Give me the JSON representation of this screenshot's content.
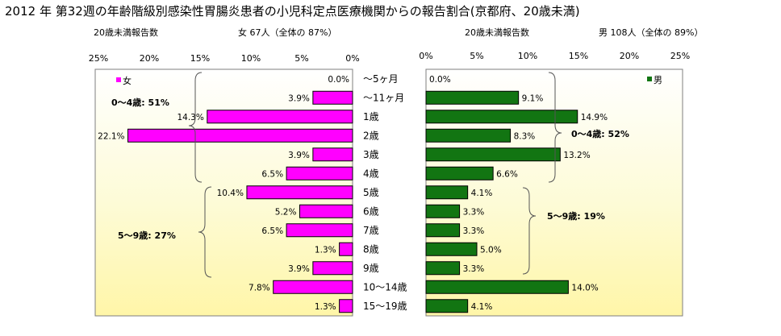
{
  "title": "2012 年 第32週の年齢階級別感染性胃腸炎患者の小児科定点医療機関からの報告割合(京都府、20歳未満)",
  "chart_data": {
    "type": "bar",
    "categories": [
      "～5ヶ月",
      "～11ヶ月",
      "1歳",
      "2歳",
      "3歳",
      "4歳",
      "5歳",
      "6歳",
      "7歳",
      "8歳",
      "9歳",
      "10～14歳",
      "15～19歳"
    ],
    "axis_ticks": [
      "0%",
      "5%",
      "10%",
      "15%",
      "20%",
      "25%"
    ],
    "xlim": [
      0,
      25
    ],
    "female": {
      "header_left": "20歳未満報告数",
      "header_right": "女 67人（全体の 87%）",
      "legend": "女",
      "color": "#ff00ff",
      "values": [
        0.0,
        3.9,
        14.3,
        22.1,
        3.9,
        6.5,
        10.4,
        5.2,
        6.5,
        1.3,
        3.9,
        7.8,
        1.3
      ],
      "labels": [
        "0.0%",
        "3.9%",
        "14.3%",
        "22.1%",
        "3.9%",
        "6.5%",
        "10.4%",
        "5.2%",
        "6.5%",
        "1.3%",
        "3.9%",
        "7.8%",
        "1.3%"
      ],
      "group_labels": [
        "0～4歳: 51%",
        "5～9歳: 27%"
      ]
    },
    "male": {
      "header_left": "20歳未満報告数",
      "header_right": "男 108人（全体の 89%）",
      "legend": "男",
      "color": "#127512",
      "values": [
        0.0,
        9.1,
        14.9,
        8.3,
        13.2,
        6.6,
        4.1,
        3.3,
        3.3,
        5.0,
        3.3,
        14.0,
        4.1
      ],
      "labels": [
        "0.0%",
        "9.1%",
        "14.9%",
        "8.3%",
        "13.2%",
        "6.6%",
        "4.1%",
        "3.3%",
        "3.3%",
        "5.0%",
        "3.3%",
        "14.0%",
        "4.1%"
      ],
      "group_labels": [
        "0～4歳: 52%",
        "5～9歳: 19%"
      ]
    }
  }
}
